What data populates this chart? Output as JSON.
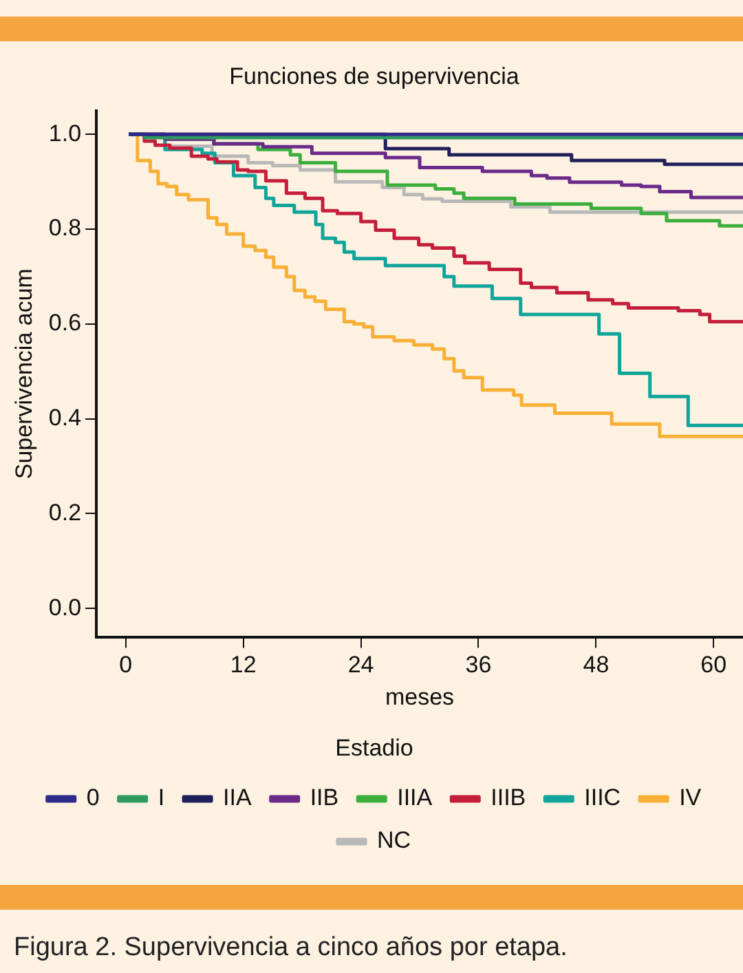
{
  "chart_data": {
    "type": "step",
    "title": "Funciones de supervivencia",
    "xlabel": "meses",
    "ylabel": "Supervivencia acum",
    "legend_title": "Estadio",
    "legend": "bottom",
    "grid": false,
    "xlim": [
      -3,
      63
    ],
    "xticks": [
      0,
      12,
      24,
      36,
      48,
      60
    ],
    "ylim": [
      -0.06,
      1.05
    ],
    "yticks": [
      {
        "value": 0,
        "label": "0.0"
      },
      {
        "value": 0.2,
        "label": "0.2"
      },
      {
        "value": 0.4,
        "label": "0.4"
      },
      {
        "value": 0.6,
        "label": "0.6"
      },
      {
        "value": 0.8,
        "label": "0.8"
      },
      {
        "value": 1,
        "label": "1.0"
      }
    ],
    "series": [
      {
        "name": "0",
        "color": "#2e2a8a",
        "x": [
          0.3,
          63
        ],
        "values": [
          1,
          1
        ]
      },
      {
        "name": "I",
        "color": "#2e9a5e",
        "x": [
          0.3,
          2,
          63
        ],
        "values": [
          1,
          0.993,
          0.993
        ]
      },
      {
        "name": "IIA",
        "color": "#1f1f5a",
        "x": [
          0.3,
          26.5,
          33,
          45.5,
          55,
          63
        ],
        "values": [
          1,
          0.97,
          0.957,
          0.945,
          0.937,
          0.94
        ]
      },
      {
        "name": "IIB",
        "color": "#6a2a8a",
        "x": [
          0.3,
          4,
          9,
          14,
          19,
          26.5,
          30,
          36.4,
          41.4,
          43,
          45.3,
          50.6,
          52.6,
          54.5,
          57.7,
          63
        ],
        "values": [
          1,
          0.99,
          0.98,
          0.974,
          0.96,
          0.951,
          0.93,
          0.922,
          0.913,
          0.908,
          0.899,
          0.893,
          0.89,
          0.879,
          0.867,
          0.867
        ]
      },
      {
        "name": "IIIA",
        "color": "#3cae3c",
        "x": [
          0.3,
          4,
          9,
          13.5,
          16.8,
          17.8,
          21.4,
          26.7,
          31.6,
          33.5,
          34.5,
          39.7,
          47.5,
          52.6,
          55.2,
          60.6,
          63
        ],
        "values": [
          1,
          0.99,
          0.98,
          0.968,
          0.957,
          0.94,
          0.922,
          0.893,
          0.885,
          0.876,
          0.865,
          0.853,
          0.844,
          0.833,
          0.818,
          0.807,
          0.807
        ]
      },
      {
        "name": "IIIB",
        "color": "#c41e3a",
        "x": [
          0.3,
          1.9,
          3,
          4.5,
          6.7,
          8.4,
          9.3,
          11.4,
          12.5,
          14.3,
          16.4,
          18.3,
          20.1,
          21.6,
          24,
          25.5,
          27.4,
          29.9,
          31.3,
          33.5,
          34.6,
          37.1,
          40.3,
          41.4,
          44,
          47.2,
          49.7,
          51.3,
          56.4,
          58.6,
          59.6,
          63
        ],
        "values": [
          1,
          0.986,
          0.977,
          0.971,
          0.954,
          0.948,
          0.942,
          0.925,
          0.922,
          0.902,
          0.876,
          0.865,
          0.839,
          0.833,
          0.816,
          0.798,
          0.781,
          0.767,
          0.76,
          0.743,
          0.729,
          0.715,
          0.686,
          0.677,
          0.666,
          0.651,
          0.643,
          0.634,
          0.628,
          0.62,
          0.605,
          0.605
        ]
      },
      {
        "name": "IIIC",
        "color": "#10a49a",
        "x": [
          0.3,
          1.9,
          4,
          7.8,
          9.1,
          11,
          13.2,
          14.3,
          15.1,
          17.2,
          19.4,
          20.1,
          21.4,
          22.3,
          23.3,
          26.5,
          32.5,
          33.5,
          37.4,
          40.3,
          48.3,
          50.4,
          53.5,
          57.4,
          63
        ],
        "values": [
          1,
          0.994,
          0.968,
          0.96,
          0.94,
          0.913,
          0.888,
          0.865,
          0.85,
          0.836,
          0.81,
          0.781,
          0.772,
          0.752,
          0.738,
          0.723,
          0.7,
          0.68,
          0.654,
          0.62,
          0.579,
          0.496,
          0.447,
          0.386,
          0.386
        ]
      },
      {
        "name": "IV",
        "color": "#f7b035",
        "x": [
          0.3,
          1.2,
          2.5,
          3.3,
          4.2,
          5.2,
          6.4,
          8.4,
          9.3,
          10.3,
          12,
          13.2,
          14.3,
          15.1,
          16.4,
          17.2,
          18.3,
          19.3,
          20.4,
          22.3,
          23.3,
          24.3,
          25.2,
          27.4,
          29.4,
          31.3,
          32.5,
          33.5,
          34.5,
          36.4,
          39.6,
          40.4,
          43.8,
          49.6,
          54.5,
          63
        ],
        "values": [
          1,
          0.945,
          0.922,
          0.896,
          0.89,
          0.873,
          0.862,
          0.824,
          0.81,
          0.79,
          0.764,
          0.755,
          0.741,
          0.72,
          0.7,
          0.671,
          0.657,
          0.648,
          0.631,
          0.605,
          0.6,
          0.594,
          0.573,
          0.565,
          0.556,
          0.547,
          0.527,
          0.501,
          0.487,
          0.461,
          0.45,
          0.429,
          0.412,
          0.389,
          0.363,
          0.363
        ]
      },
      {
        "name": "NC",
        "color": "#b8b8b8",
        "x": [
          0.3,
          4,
          8.8,
          12.5,
          15,
          17.8,
          21.4,
          26.2,
          28.4,
          30.3,
          32.3,
          39.3,
          43.3,
          63
        ],
        "values": [
          1,
          0.975,
          0.954,
          0.94,
          0.934,
          0.925,
          0.9,
          0.888,
          0.873,
          0.864,
          0.859,
          0.847,
          0.836,
          0.836
        ]
      }
    ],
    "annotations": [
      "Figura 2. Supervivencia a cinco años por etapa."
    ]
  }
}
